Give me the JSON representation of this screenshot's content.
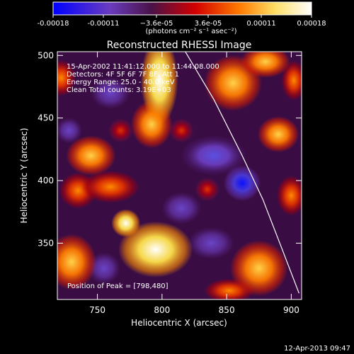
{
  "chart_data": {
    "type": "heatmap",
    "title": "Reconstructed RHESSI Image",
    "xlabel": "Heliocentric X (arcsec)",
    "ylabel": "Heliocentric Y (arcsec)",
    "xlim": [
      719,
      908
    ],
    "ylim": [
      305,
      503
    ],
    "x_ticks": [
      750,
      800,
      850,
      900
    ],
    "y_ticks": [
      350,
      400,
      450,
      500
    ],
    "colorbar": {
      "min": -0.00018,
      "max": 0.00018,
      "tick_values": [
        -0.00018,
        -0.00011,
        -3.6e-05,
        3.6e-05,
        0.00011,
        0.00018
      ],
      "tick_labels": [
        "-0.00018",
        "-0.00011",
        "−3.6e-05",
        "3.6e-05",
        "0.00011",
        "0.00018"
      ],
      "unit_label": "(photons cm⁻² s⁻¹ asec⁻²)",
      "colormap": [
        "#0000ff",
        "#6a3cbe",
        "#5a1a5a",
        "#d60000",
        "#ff8c00",
        "#ffff88",
        "#ffffff"
      ]
    },
    "annotations": [
      "15-Apr-2002 11:41:12.000 to 11:44:08.000",
      "Detectors: 4F 5F 6F 7F 8F, Att 1",
      "Energy Range: 25.0 - 40.0 keV",
      "Clean    Total counts: 3.19E+03"
    ],
    "peak_label": "Position of Peak = [798,480]",
    "peak_position": [
      798,
      480
    ],
    "limb_curve": [
      [
        818,
        503
      ],
      [
        840,
        465
      ],
      [
        862,
        420
      ],
      [
        878,
        385
      ],
      [
        893,
        345
      ],
      [
        906,
        310
      ]
    ],
    "blobs": [
      {
        "x": 798,
        "y": 480,
        "v": 1.0,
        "sx": 9,
        "sy": 22
      },
      {
        "x": 792,
        "y": 445,
        "v": 0.75,
        "sx": 10,
        "sy": 12
      },
      {
        "x": 795,
        "y": 345,
        "v": 0.95,
        "sx": 18,
        "sy": 14
      },
      {
        "x": 772,
        "y": 366,
        "v": 0.95,
        "sx": 7,
        "sy": 7
      },
      {
        "x": 815,
        "y": 440,
        "v": 0.45,
        "sx": 6,
        "sy": 6
      },
      {
        "x": 745,
        "y": 420,
        "v": 0.7,
        "sx": 12,
        "sy": 10
      },
      {
        "x": 735,
        "y": 392,
        "v": 0.55,
        "sx": 9,
        "sy": 9
      },
      {
        "x": 760,
        "y": 395,
        "v": 0.6,
        "sx": 14,
        "sy": 8
      },
      {
        "x": 722,
        "y": 482,
        "v": 0.65,
        "sx": 7,
        "sy": 9
      },
      {
        "x": 730,
        "y": 335,
        "v": 0.8,
        "sx": 12,
        "sy": 14
      },
      {
        "x": 855,
        "y": 478,
        "v": 0.85,
        "sx": 14,
        "sy": 14
      },
      {
        "x": 880,
        "y": 495,
        "v": 0.85,
        "sx": 12,
        "sy": 8
      },
      {
        "x": 902,
        "y": 480,
        "v": 0.6,
        "sx": 6,
        "sy": 10
      },
      {
        "x": 890,
        "y": 437,
        "v": 0.7,
        "sx": 10,
        "sy": 9
      },
      {
        "x": 875,
        "y": 330,
        "v": 0.85,
        "sx": 14,
        "sy": 14
      },
      {
        "x": 852,
        "y": 312,
        "v": 0.5,
        "sx": 12,
        "sy": 6
      },
      {
        "x": 900,
        "y": 388,
        "v": 0.5,
        "sx": 7,
        "sy": 10
      },
      {
        "x": 835,
        "y": 393,
        "v": 0.35,
        "sx": 6,
        "sy": 6
      },
      {
        "x": 768,
        "y": 440,
        "v": 0.4,
        "sx": 6,
        "sy": 6
      },
      {
        "x": 862,
        "y": 398,
        "v": -1.0,
        "sx": 9,
        "sy": 9
      },
      {
        "x": 840,
        "y": 420,
        "v": -0.55,
        "sx": 16,
        "sy": 10
      },
      {
        "x": 815,
        "y": 378,
        "v": -0.45,
        "sx": 12,
        "sy": 10
      },
      {
        "x": 755,
        "y": 330,
        "v": -0.35,
        "sx": 10,
        "sy": 10
      },
      {
        "x": 838,
        "y": 350,
        "v": -0.45,
        "sx": 14,
        "sy": 10
      },
      {
        "x": 760,
        "y": 470,
        "v": -0.3,
        "sx": 12,
        "sy": 10
      },
      {
        "x": 728,
        "y": 440,
        "v": -0.35,
        "sx": 8,
        "sy": 8
      }
    ]
  },
  "footer": {
    "timestamp": "12-Apr-2013 09:47"
  }
}
